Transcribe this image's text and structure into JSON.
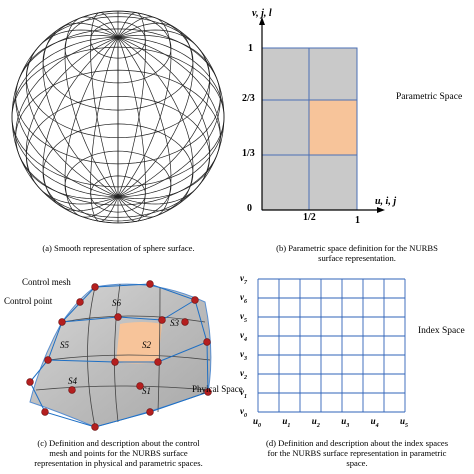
{
  "panels": {
    "a": {
      "caption": "(a) Smooth representation of sphere surface."
    },
    "b": {
      "caption_line1": "(b) Parametric space definition for the NURBS",
      "caption_line2": "surface representation.",
      "side_title": "Parametric Space",
      "y_axis_label": "v, j, l",
      "x_axis_label": "u, i, j",
      "y_ticks": [
        "0",
        "1/3",
        "2/3",
        "1"
      ],
      "x_ticks": [
        "1/2",
        "1"
      ],
      "highlight_color": "#f7c49a",
      "cell_color": "#c9c9c9"
    },
    "c": {
      "caption_line1": "(c) Definition and description about the control",
      "caption_line2": "mesh and points for the NURBS surface",
      "caption_line3": "representation in physical and parametric spaces.",
      "label_control_mesh": "Control mesh",
      "label_control_point": "Control point",
      "label_physical_space": "Phyical Space",
      "patch_labels": [
        "S6",
        "S5",
        "S3",
        "S2",
        "S4",
        "S1"
      ],
      "highlight_color": "#f7c49a",
      "point_color": "#b41f1f"
    },
    "d": {
      "caption_line1": "(d) Definition and description about the index spaces",
      "caption_line2": "for the NURBS surface representation in parametric",
      "caption_line3": "space.",
      "side_title": "Index Space",
      "v_labels": [
        "v0",
        "v1",
        "v2",
        "v3",
        "v4",
        "v5",
        "v6",
        "v7"
      ],
      "u_labels": [
        "u0",
        "u1",
        "u2",
        "u3",
        "u4",
        "u5"
      ],
      "grid_color": "#2f63b8"
    }
  }
}
